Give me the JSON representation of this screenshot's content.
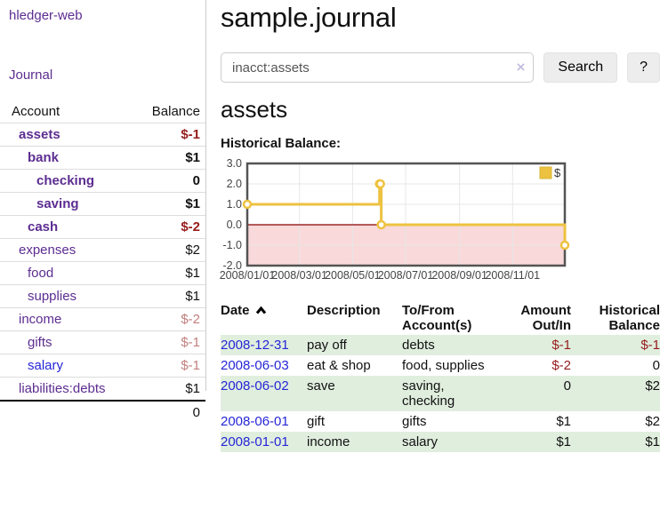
{
  "app": {
    "brand": "hledger-web"
  },
  "colors": {
    "link_purple": "#5c2d91",
    "link_blue": "#2626d8",
    "negative_strong": "#961c1c",
    "negative_muted": "#c27e7e",
    "row_highlight_green": "#e0eede",
    "chart_line": "#edc240",
    "chart_negative_region": "#f9d9d9",
    "chart_zero_line": "#8b0000",
    "chart_border": "#545454",
    "chart_grid": "#e7e7e7"
  },
  "sidebar": {
    "nav_journal": "Journal",
    "accounts": {
      "col_account": "Account",
      "col_balance": "Balance",
      "rows": [
        {
          "name": "assets",
          "indent": 0,
          "bold": true,
          "balance": "$-1",
          "balance_style": "neg"
        },
        {
          "name": "bank",
          "indent": 1,
          "bold": true,
          "balance": "$1",
          "balance_style": "pos"
        },
        {
          "name": "checking",
          "indent": 2,
          "bold": true,
          "balance": "0",
          "balance_style": "pos"
        },
        {
          "name": "saving",
          "indent": 2,
          "bold": true,
          "balance": "$1",
          "balance_style": "pos"
        },
        {
          "name": "cash",
          "indent": 1,
          "bold": true,
          "balance": "$-2",
          "balance_style": "neg"
        },
        {
          "name": "expenses",
          "indent": 0,
          "bold": false,
          "balance": "$2",
          "balance_style": "pos"
        },
        {
          "name": "food",
          "indent": 1,
          "bold": false,
          "balance": "$1",
          "balance_style": "pos"
        },
        {
          "name": "supplies",
          "indent": 1,
          "bold": false,
          "balance": "$1",
          "balance_style": "pos"
        },
        {
          "name": "income",
          "indent": 0,
          "bold": false,
          "balance": "$-2",
          "balance_style": "neg-muted"
        },
        {
          "name": "gifts",
          "indent": 1,
          "bold": false,
          "balance": "$-1",
          "balance_style": "neg-muted"
        },
        {
          "name": "salary",
          "indent": 1,
          "bold": false,
          "balance": "$-1",
          "balance_style": "neg-muted",
          "link_style": "blue"
        },
        {
          "name": "liabilities:debts",
          "indent": 0,
          "bold": false,
          "balance": "$1",
          "balance_style": "pos"
        }
      ],
      "total": "0"
    }
  },
  "main": {
    "title": "sample.journal",
    "search": {
      "value": "inacct:assets",
      "clear_icon": "×",
      "button_label": "Search",
      "help_label": "?"
    },
    "account_heading": "assets",
    "chart_title": "Historical Balance:"
  },
  "chart_data": {
    "type": "line",
    "step": true,
    "title": "Historical Balance:",
    "series": [
      {
        "name": "$",
        "color": "#edc240",
        "points": [
          [
            "2008-01-01",
            1
          ],
          [
            "2008-06-01",
            2
          ],
          [
            "2008-06-02",
            2
          ],
          [
            "2008-06-03",
            0
          ],
          [
            "2008-12-31",
            -1
          ]
        ]
      }
    ],
    "ylim": [
      -2,
      3
    ],
    "y_ticks": [
      "3.0",
      "2.0",
      "1.0",
      "0.0",
      "-1.0",
      "-2.0"
    ],
    "x_ticks": [
      "2008/01/01",
      "2008/03/01",
      "2008/05/01",
      "2008/07/01",
      "2008/09/01",
      "2008/11/01"
    ],
    "x_range": [
      "2008-01-01",
      "2008-12-31"
    ],
    "grid": true,
    "legend": {
      "label": "$",
      "position": "top-right"
    },
    "negative_region_shaded": true
  },
  "register": {
    "col_date": "Date",
    "sort_indicator": "ascending",
    "col_description": "Description",
    "col_accounts": "To/From Account(s)",
    "col_amount": "Amount Out/In",
    "col_balance": "Historical Balance",
    "rows": [
      {
        "date": "2008-12-31",
        "description": "pay off",
        "accounts": "debts",
        "amount": "$-1",
        "amount_style": "neg",
        "balance": "$-1",
        "balance_style": "neg",
        "highlight": true
      },
      {
        "date": "2008-06-03",
        "description": "eat & shop",
        "accounts": "food, supplies",
        "amount": "$-2",
        "amount_style": "neg",
        "balance": "0",
        "balance_style": "pos",
        "highlight": false
      },
      {
        "date": "2008-06-02",
        "description": "save",
        "accounts": "saving, checking",
        "amount": "0",
        "amount_style": "pos",
        "balance": "$2",
        "balance_style": "pos",
        "highlight": true
      },
      {
        "date": "2008-06-01",
        "description": "gift",
        "accounts": "gifts",
        "amount": "$1",
        "amount_style": "pos",
        "balance": "$2",
        "balance_style": "pos",
        "highlight": false
      },
      {
        "date": "2008-01-01",
        "description": "income",
        "accounts": "salary",
        "amount": "$1",
        "amount_style": "pos",
        "balance": "$1",
        "balance_style": "pos",
        "highlight": true
      }
    ]
  }
}
